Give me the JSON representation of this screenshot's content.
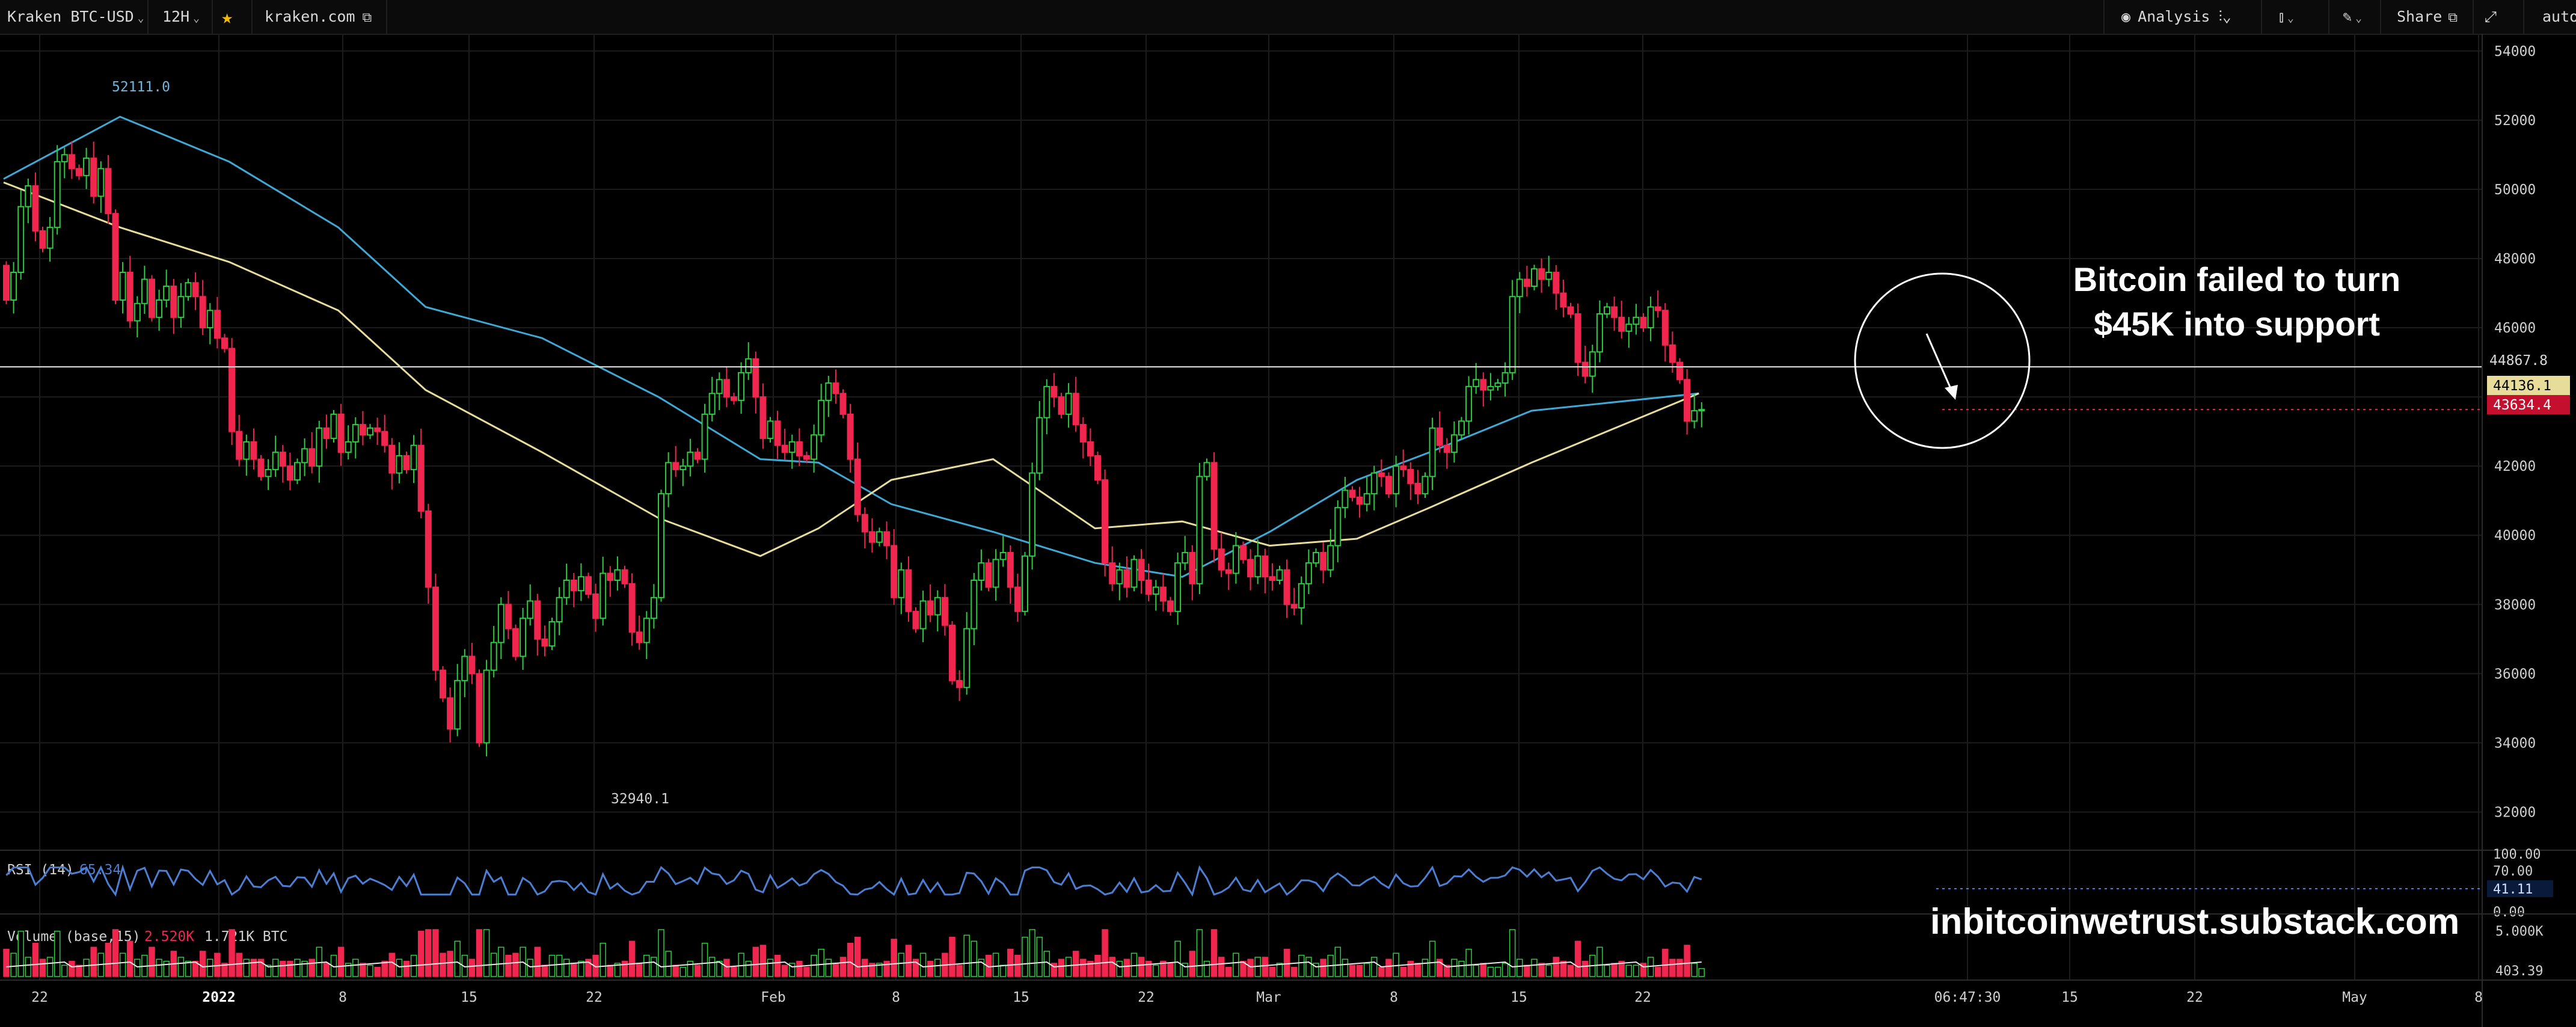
{
  "toolbar": {
    "symbol": "Kraken BTC-USD",
    "interval": "12H",
    "site": "kraken.com",
    "analysis_label": "Analysis",
    "share_label": "Share",
    "auto_label": "auto"
  },
  "annotation": {
    "line1": "Bitcoin failed to turn",
    "line2": "$45K into support"
  },
  "watermark": "inbitcoinwetrust.substack.com",
  "colors": {
    "bg": "#000000",
    "up": "#2ecc40",
    "down": "#f0264e",
    "ma_long": "#3fa9d6",
    "ma_short": "#e7dc9a",
    "rsi": "#4a7fd4",
    "grid": "#1c1c1c"
  },
  "chart_data": {
    "type": "candlestick",
    "price_axis": {
      "ticks": [
        32000,
        34000,
        36000,
        38000,
        40000,
        42000,
        44000,
        46000,
        48000,
        50000,
        52000,
        54000
      ],
      "range": [
        31000,
        54500
      ]
    },
    "x_labels": [
      "22",
      "2022",
      "8",
      "15",
      "22",
      "Feb",
      "8",
      "15",
      "22",
      "Mar",
      "8",
      "15",
      "22",
      "06:47:30",
      "15",
      "22",
      "May",
      "8"
    ],
    "candles_12h": [
      [
        47800,
        46800
      ],
      [
        46800,
        47600
      ],
      [
        47600,
        49500
      ],
      [
        49500,
        50100
      ],
      [
        50100,
        48800
      ],
      [
        48800,
        48300
      ],
      [
        48300,
        48900
      ],
      [
        48900,
        50800
      ],
      [
        50800,
        51000
      ],
      [
        51000,
        50600
      ],
      [
        50600,
        50400
      ],
      [
        50400,
        50900
      ],
      [
        50900,
        49800
      ],
      [
        49800,
        50600
      ],
      [
        50600,
        49300
      ],
      [
        49300,
        46800
      ],
      [
        46800,
        47600
      ],
      [
        47600,
        46200
      ],
      [
        46200,
        46700
      ],
      [
        46700,
        47400
      ],
      [
        47400,
        46300
      ],
      [
        46300,
        46800
      ],
      [
        46800,
        47200
      ],
      [
        47200,
        46300
      ],
      [
        46300,
        46900
      ],
      [
        46900,
        47300
      ],
      [
        47300,
        46900
      ],
      [
        46900,
        46000
      ],
      [
        46000,
        46500
      ],
      [
        46500,
        45700
      ],
      [
        45700,
        45400
      ],
      [
        45400,
        43000
      ],
      [
        43000,
        42200
      ],
      [
        42200,
        42700
      ],
      [
        42700,
        42200
      ],
      [
        42200,
        41700
      ],
      [
        41700,
        41900
      ],
      [
        41900,
        42400
      ],
      [
        42400,
        42000
      ],
      [
        42000,
        41600
      ],
      [
        41600,
        42100
      ],
      [
        42100,
        42500
      ],
      [
        42500,
        42000
      ],
      [
        42000,
        43100
      ],
      [
        43100,
        42800
      ],
      [
        42800,
        43500
      ],
      [
        43500,
        42400
      ],
      [
        42400,
        42700
      ],
      [
        42700,
        43200
      ],
      [
        43200,
        42900
      ],
      [
        42900,
        43100
      ],
      [
        43100,
        43000
      ],
      [
        43000,
        42600
      ],
      [
        42600,
        41800
      ],
      [
        41800,
        42300
      ],
      [
        42300,
        41900
      ],
      [
        41900,
        42600
      ],
      [
        42600,
        40700
      ],
      [
        40700,
        38500
      ],
      [
        38500,
        36100
      ],
      [
        36100,
        35300
      ],
      [
        35300,
        34400
      ],
      [
        34400,
        35800
      ],
      [
        35800,
        36500
      ],
      [
        36500,
        36000
      ],
      [
        36000,
        34000
      ],
      [
        34000,
        36100
      ],
      [
        36100,
        36900
      ],
      [
        36900,
        38000
      ],
      [
        38000,
        37300
      ],
      [
        37300,
        36500
      ],
      [
        36500,
        37600
      ],
      [
        37600,
        38100
      ],
      [
        38100,
        37000
      ],
      [
        37000,
        36800
      ],
      [
        36800,
        37500
      ],
      [
        37500,
        38200
      ],
      [
        38200,
        38700
      ],
      [
        38700,
        38400
      ],
      [
        38400,
        38800
      ],
      [
        38800,
        38300
      ],
      [
        38300,
        37600
      ],
      [
        37600,
        38900
      ],
      [
        38900,
        38700
      ],
      [
        38700,
        39000
      ],
      [
        39000,
        38600
      ],
      [
        38600,
        37200
      ],
      [
        37200,
        36900
      ],
      [
        36900,
        37600
      ],
      [
        37600,
        38200
      ],
      [
        38200,
        41200
      ],
      [
        41200,
        42100
      ],
      [
        42100,
        41900
      ],
      [
        41900,
        42000
      ],
      [
        42000,
        42400
      ],
      [
        42400,
        42200
      ],
      [
        42200,
        43500
      ],
      [
        43500,
        44100
      ],
      [
        44100,
        44500
      ],
      [
        44500,
        44000
      ],
      [
        44000,
        43900
      ],
      [
        43900,
        44700
      ],
      [
        44700,
        45100
      ],
      [
        45100,
        44000
      ],
      [
        44000,
        42800
      ],
      [
        42800,
        43300
      ],
      [
        43300,
        42600
      ],
      [
        42600,
        42400
      ],
      [
        42400,
        42700
      ],
      [
        42700,
        42300
      ],
      [
        42300,
        42200
      ],
      [
        42200,
        42900
      ],
      [
        42900,
        43900
      ],
      [
        43900,
        44400
      ],
      [
        44400,
        44100
      ],
      [
        44100,
        43500
      ],
      [
        43500,
        42200
      ],
      [
        42200,
        40600
      ],
      [
        40600,
        40100
      ],
      [
        40100,
        39800
      ],
      [
        39800,
        40100
      ],
      [
        40100,
        39700
      ],
      [
        39700,
        38200
      ],
      [
        38200,
        39000
      ],
      [
        39000,
        37800
      ],
      [
        37800,
        37300
      ],
      [
        37300,
        38100
      ],
      [
        38100,
        37700
      ],
      [
        37700,
        38200
      ],
      [
        38200,
        37400
      ],
      [
        37400,
        35800
      ],
      [
        35800,
        35600
      ],
      [
        35600,
        37300
      ],
      [
        37300,
        38700
      ],
      [
        38700,
        39200
      ],
      [
        39200,
        38500
      ],
      [
        38500,
        39300
      ],
      [
        39300,
        39500
      ],
      [
        39500,
        38500
      ],
      [
        38500,
        37800
      ],
      [
        37800,
        39400
      ],
      [
        39400,
        41800
      ],
      [
        41800,
        43400
      ],
      [
        43400,
        44300
      ],
      [
        44300,
        44000
      ],
      [
        44000,
        43500
      ],
      [
        43500,
        44100
      ],
      [
        44100,
        43200
      ],
      [
        43200,
        42700
      ],
      [
        42700,
        42300
      ],
      [
        42300,
        41600
      ],
      [
        41600,
        39200
      ],
      [
        39200,
        38600
      ],
      [
        38600,
        39000
      ],
      [
        39000,
        38500
      ],
      [
        38500,
        39300
      ],
      [
        39300,
        38700
      ],
      [
        38700,
        38300
      ],
      [
        38300,
        38500
      ],
      [
        38500,
        38100
      ],
      [
        38100,
        37800
      ],
      [
        37800,
        39200
      ],
      [
        39200,
        39500
      ],
      [
        39500,
        38600
      ],
      [
        38600,
        41700
      ],
      [
        41700,
        42100
      ],
      [
        42100,
        39600
      ],
      [
        39600,
        39000
      ],
      [
        39000,
        38900
      ],
      [
        38900,
        39700
      ],
      [
        39700,
        39300
      ],
      [
        39300,
        38800
      ],
      [
        38800,
        39400
      ],
      [
        39400,
        38800
      ],
      [
        38800,
        38700
      ],
      [
        38700,
        39000
      ],
      [
        39000,
        38000
      ],
      [
        38000,
        37900
      ],
      [
        37900,
        38600
      ],
      [
        38600,
        39200
      ],
      [
        39200,
        39500
      ],
      [
        39500,
        39000
      ],
      [
        39000,
        39700
      ],
      [
        39700,
        40800
      ],
      [
        40800,
        41300
      ],
      [
        41300,
        41100
      ],
      [
        41100,
        40900
      ],
      [
        40900,
        41200
      ],
      [
        41200,
        41800
      ],
      [
        41800,
        41700
      ],
      [
        41700,
        41200
      ],
      [
        41200,
        42000
      ],
      [
        42000,
        41900
      ],
      [
        41900,
        41500
      ],
      [
        41500,
        41200
      ],
      [
        41200,
        41700
      ],
      [
        41700,
        43100
      ],
      [
        43100,
        42600
      ],
      [
        42600,
        42400
      ],
      [
        42400,
        42900
      ],
      [
        42900,
        43300
      ],
      [
        43300,
        44300
      ],
      [
        44300,
        44500
      ],
      [
        44500,
        44200
      ],
      [
        44200,
        44300
      ],
      [
        44300,
        44400
      ],
      [
        44400,
        44700
      ],
      [
        44700,
        46900
      ],
      [
        46900,
        47400
      ],
      [
        47400,
        47200
      ],
      [
        47200,
        47700
      ],
      [
        47700,
        47400
      ],
      [
        47400,
        47600
      ],
      [
        47600,
        47000
      ],
      [
        47000,
        46600
      ],
      [
        46600,
        46400
      ],
      [
        46400,
        45000
      ],
      [
        45000,
        44600
      ],
      [
        44600,
        45300
      ],
      [
        45300,
        46400
      ],
      [
        46400,
        46600
      ],
      [
        46600,
        46300
      ],
      [
        46300,
        45900
      ],
      [
        45900,
        46100
      ],
      [
        46100,
        46300
      ],
      [
        46300,
        46000
      ],
      [
        46000,
        46600
      ],
      [
        46600,
        46500
      ],
      [
        46500,
        45500
      ],
      [
        45500,
        45000
      ],
      [
        45000,
        44500
      ],
      [
        44500,
        43300
      ],
      [
        43300,
        43600
      ],
      [
        43600,
        43634
      ]
    ],
    "series": [
      {
        "values": [
          50300,
          52100,
          50800,
          48900,
          46600,
          45700,
          44000,
          42200,
          42100,
          40900,
          40100,
          39200,
          38800,
          40100,
          41600,
          42400,
          43600,
          44100
        ]
      },
      {
        "values": [
          50200,
          48900,
          47900,
          46500,
          44200,
          42400,
          40500,
          39400,
          40200,
          41600,
          42200,
          40200,
          40400,
          39700,
          39900,
          40800,
          42100,
          44100
        ]
      }
    ],
    "x_value": [
      0,
      16,
      31,
      46,
      58,
      74,
      90,
      104,
      112,
      122,
      136,
      150,
      162,
      174,
      186,
      196,
      210,
      233
    ],
    "hline": 44867.8,
    "last_price": 43634.4,
    "ma_price": 44136.1,
    "annotations": [
      "52111.0",
      "32940.1",
      "44867.8",
      "44136.1",
      "43634.4"
    ],
    "rsi": {
      "label": "RSI (14)",
      "value": "65.34",
      "ticks": [
        "100.00",
        "70.00",
        "41.11",
        "0.00"
      ],
      "current": 41.11
    },
    "volume": {
      "label": "Volume (base,15)",
      "value_red": "2.520K",
      "value": "1.721K BTC",
      "ticks": [
        "5.000K",
        "403.39"
      ]
    }
  }
}
